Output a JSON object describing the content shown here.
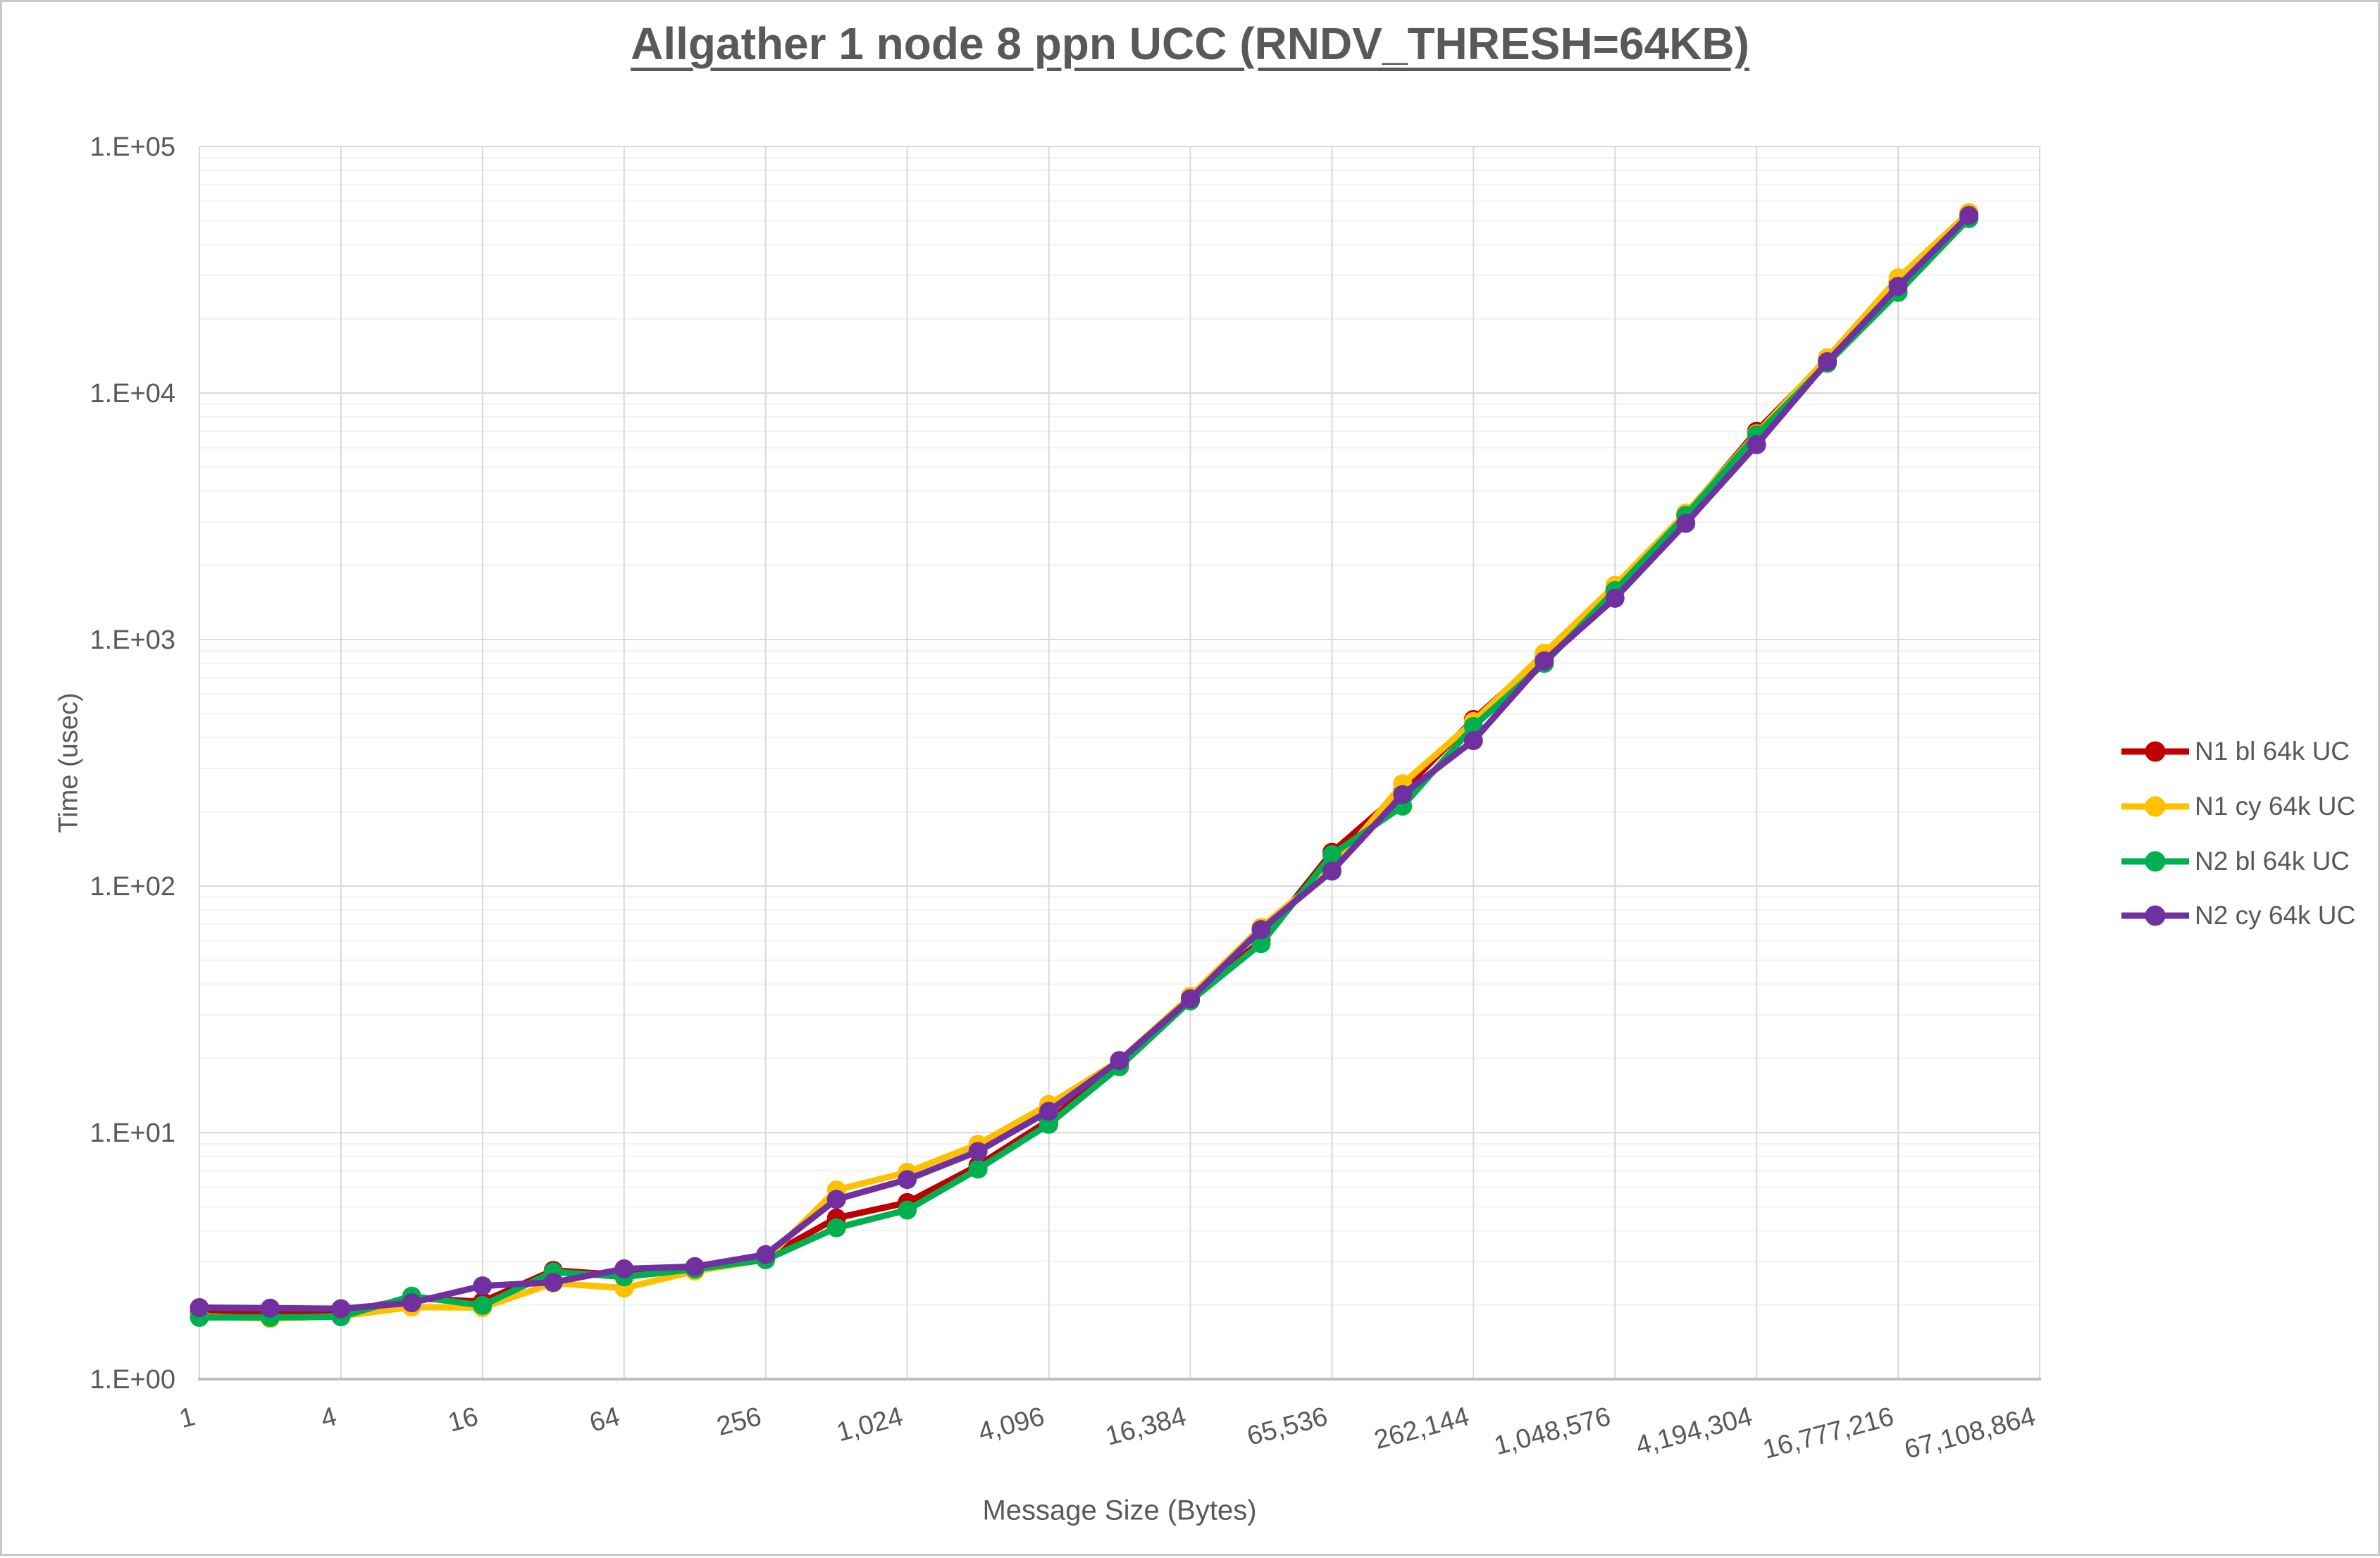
{
  "title": "Allgather 1 node 8 ppn UCC (RNDV_THRESH=64KB)",
  "colors": {
    "text_gray": "#595959",
    "major_grid": "#d9d9d9",
    "minor_grid": "#f2f2f2",
    "axis_line": "#bfbfbf",
    "frame_border": "#c9c9c9"
  },
  "chart_data": {
    "type": "line",
    "title": "Allgather 1 node 8 ppn UCC (RNDV_THRESH=64KB)",
    "xlabel": "Message Size (Bytes)",
    "ylabel": "Time (usec)",
    "x_scale": "log2_categories",
    "y_scale": "log10",
    "ylim": [
      1,
      100000
    ],
    "y_ticks": [
      "1.E+00",
      "1.E+01",
      "1.E+02",
      "1.E+03",
      "1.E+04",
      "1.E+05"
    ],
    "x_tick_labels": [
      "1",
      "4",
      "16",
      "64",
      "256",
      "1,024",
      "4,096",
      "16,384",
      "65,536",
      "262,144",
      "1,048,576",
      "4,194,304",
      "16,777,216",
      "67,108,864"
    ],
    "x_tick_label_rotation": -15,
    "grid": {
      "major_horizontal": true,
      "minor_horizontal": true,
      "major_vertical": true
    },
    "legend_position": "right",
    "x": [
      1,
      2,
      4,
      8,
      16,
      32,
      64,
      128,
      256,
      512,
      1024,
      2048,
      4096,
      8192,
      16384,
      32768,
      65536,
      131072,
      262144,
      524288,
      1048576,
      2097152,
      4194304,
      8388608,
      16777216,
      33554432
    ],
    "series": [
      {
        "name": "N1 bl 64k UC",
        "color": "#c00000",
        "values": [
          1.85,
          1.85,
          1.86,
          2.13,
          2.06,
          2.76,
          2.64,
          2.78,
          3.12,
          4.5,
          5.2,
          7.35,
          11.2,
          18.9,
          34.5,
          60,
          137,
          243,
          474,
          860,
          1600,
          3220,
          7000,
          13700,
          28200,
          53000
        ]
      },
      {
        "name": "N1 cy 64k UC",
        "color": "#ffc000",
        "values": [
          1.8,
          1.76,
          1.8,
          1.96,
          1.95,
          2.45,
          2.34,
          2.74,
          3.06,
          5.85,
          6.9,
          8.96,
          13,
          19.6,
          35.7,
          68,
          118,
          260,
          465,
          880,
          1660,
          3260,
          6840,
          13900,
          29300,
          54000
        ]
      },
      {
        "name": "N2 bl 64k UC",
        "color": "#00b050",
        "values": [
          1.78,
          1.78,
          1.79,
          2.17,
          1.99,
          2.72,
          2.6,
          2.79,
          3.05,
          4.11,
          4.85,
          7.11,
          10.8,
          18.5,
          34.2,
          58.4,
          134,
          211,
          444,
          800,
          1580,
          3190,
          6770,
          13200,
          25600,
          51000
        ]
      },
      {
        "name": "N2 cy 64k UC",
        "color": "#7030a0",
        "values": [
          1.95,
          1.94,
          1.93,
          2.04,
          2.39,
          2.47,
          2.8,
          2.86,
          3.2,
          5.36,
          6.45,
          8.39,
          12.2,
          19.6,
          34.9,
          66.6,
          115,
          235,
          389,
          820,
          1470,
          2960,
          6170,
          13400,
          27100,
          52500
        ]
      }
    ]
  }
}
